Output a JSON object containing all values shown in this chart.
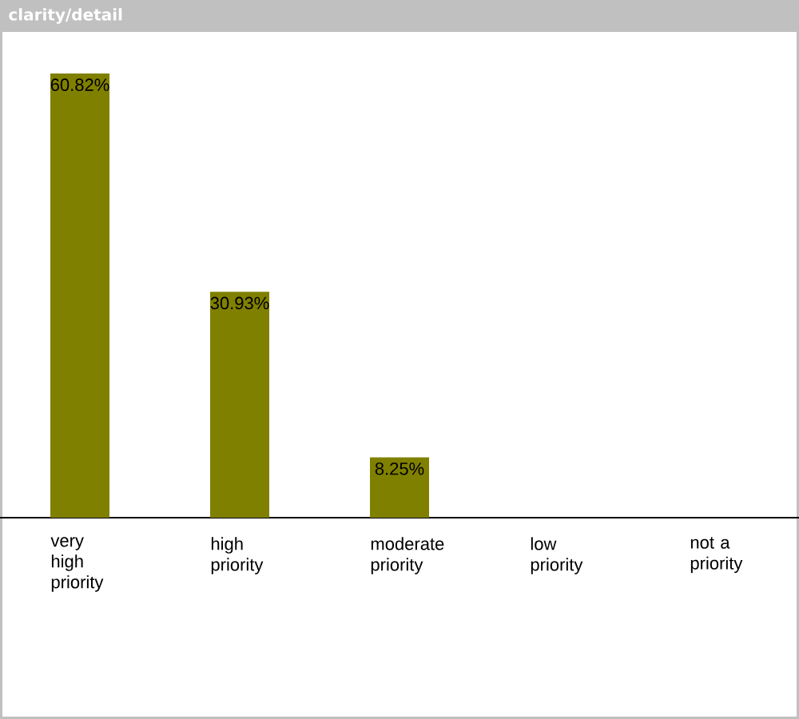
{
  "chart_data": {
    "type": "bar",
    "title": "clarity/detail",
    "categories": [
      "very high priority",
      "high priority",
      "moderate priority",
      "low priority",
      "not a priority"
    ],
    "values": [
      60.82,
      30.93,
      8.25,
      0,
      0
    ],
    "color": "#808000",
    "value_labels": [
      "60.82%",
      "30.93%",
      "8.25%",
      null,
      null
    ]
  }
}
